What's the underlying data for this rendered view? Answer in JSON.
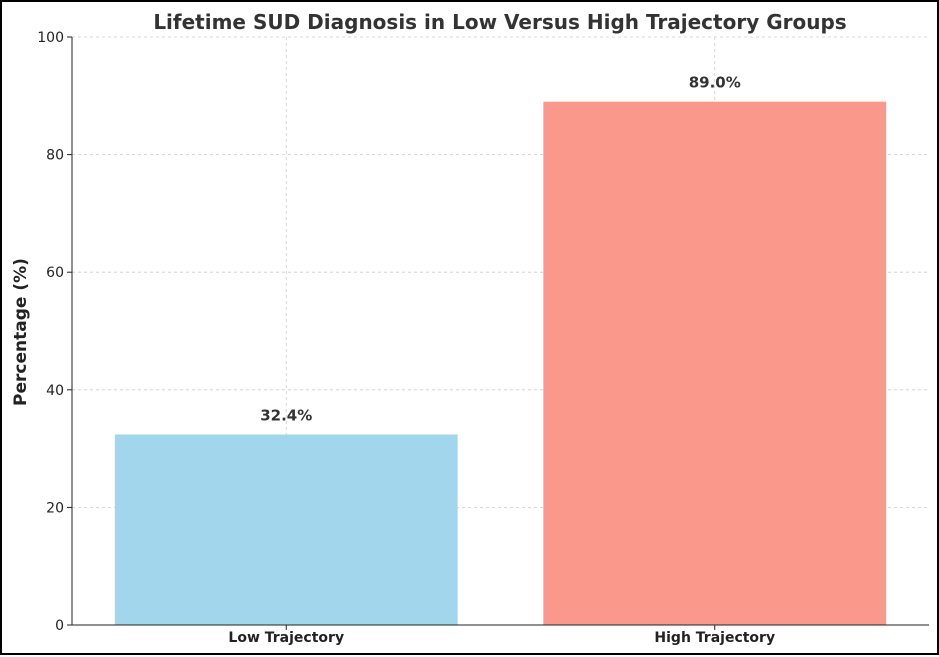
{
  "chart_data": {
    "type": "bar",
    "title": "Lifetime SUD Diagnosis in Low Versus High Trajectory Groups",
    "xlabel": "",
    "ylabel": "Percentage (%)",
    "categories": [
      "Low Trajectory",
      "High Trajectory"
    ],
    "values": [
      32.4,
      89.0
    ],
    "data_labels": [
      "32.4%",
      "89.0%"
    ],
    "colors": [
      "#a1d6ed",
      "#fa988b"
    ],
    "ylim": [
      0,
      100
    ],
    "yticks": [
      0,
      20,
      40,
      60,
      80,
      100
    ],
    "grid": true,
    "legend": "none"
  }
}
